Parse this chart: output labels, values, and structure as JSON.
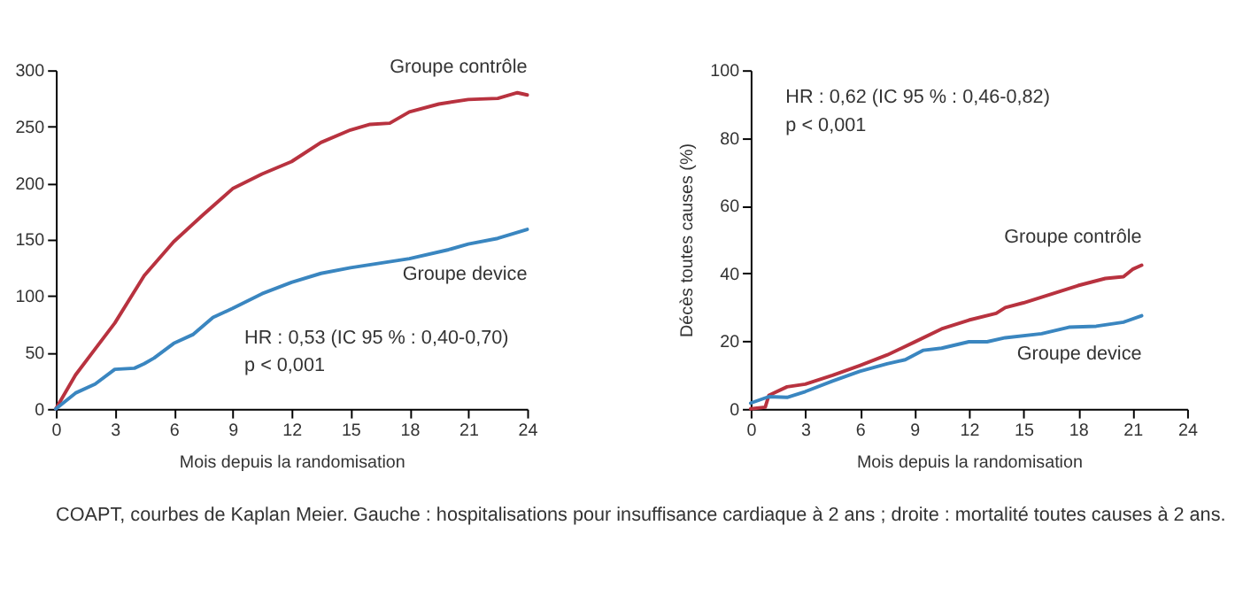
{
  "chart_data": [
    {
      "type": "line",
      "xlabel": "Mois depuis la randomisation",
      "xlim": [
        0,
        24
      ],
      "xticks": [
        0,
        3,
        6,
        9,
        12,
        15,
        18,
        21,
        24
      ],
      "ylim": [
        0,
        300
      ],
      "yticks": [
        0,
        50,
        100,
        150,
        200,
        250,
        300
      ],
      "grid": false,
      "legend": false,
      "annotations": [
        "HR : 0,53 (IC 95 % : 0,40-0,70)",
        "p < 0,001",
        "COAPT, courbes de Kaplan Meier. Gauche : hospitalisations pour insuffisance cardiaque à 2 ans ; droite : mortalité toutes causes à 2 ans."
      ],
      "series": [
        {
          "name": "Groupe contrôle",
          "color": "#b8323f",
          "x": [
            0,
            1,
            2,
            3,
            4.5,
            6,
            7.5,
            9,
            10.5,
            12,
            13.5,
            15,
            16,
            17,
            18,
            19.5,
            21,
            22.5,
            23.5,
            24
          ],
          "values": [
            0,
            30,
            53,
            76,
            118,
            148,
            172,
            195,
            208,
            219,
            236,
            247,
            252,
            253,
            263,
            270,
            274,
            275,
            280,
            278
          ]
        },
        {
          "name": "Groupe device",
          "color": "#3a86c0",
          "x": [
            0,
            1,
            2,
            3,
            4,
            4.5,
            5,
            6,
            7,
            8,
            9,
            10.5,
            12,
            13.5,
            15,
            18,
            20,
            21,
            22.5,
            24
          ],
          "values": [
            0,
            14,
            22,
            35,
            36,
            40,
            45,
            58,
            66,
            81,
            89,
            102,
            112,
            120,
            125,
            133,
            141,
            146,
            151,
            159
          ]
        }
      ]
    },
    {
      "type": "line",
      "xlabel": "Mois depuis la randomisation",
      "ylabel": "Décès toutes causes (%)",
      "xlim": [
        0,
        24
      ],
      "xticks": [
        0,
        3,
        6,
        9,
        12,
        15,
        18,
        21,
        24
      ],
      "ylim": [
        0,
        100
      ],
      "yticks": [
        0,
        20,
        40,
        60,
        80,
        100
      ],
      "grid": false,
      "legend": false,
      "annotations": [
        "HR : 0,62 (IC 95 % : 0,46-0,82)",
        "p < 0,001"
      ],
      "series": [
        {
          "name": "Groupe contrôle",
          "color": "#b8323f",
          "x": [
            0,
            0.8,
            1,
            2,
            3,
            4.5,
            6,
            7.5,
            9,
            10.5,
            12,
            13.5,
            14,
            15,
            16.5,
            18,
            19.5,
            20.5,
            21,
            21.5
          ],
          "values": [
            0,
            0.5,
            4,
            6.5,
            7.3,
            9.9,
            12.8,
            15.9,
            19.7,
            23.6,
            26.2,
            28.2,
            29.9,
            31.3,
            33.8,
            36.4,
            38.5,
            39,
            41.2,
            42.4
          ]
        },
        {
          "name": "Groupe device",
          "color": "#3a86c0",
          "x": [
            0,
            1,
            2,
            3,
            4.5,
            6,
            7.5,
            8.5,
            9.5,
            10.5,
            12,
            13,
            14,
            16,
            17.5,
            19,
            20.5,
            21.5
          ],
          "values": [
            1.7,
            3.6,
            3.4,
            5.1,
            8.2,
            11.1,
            13.3,
            14.5,
            17.3,
            17.9,
            19.8,
            19.8,
            21,
            22.2,
            24.1,
            24.4,
            25.6,
            27.5
          ]
        }
      ]
    }
  ]
}
